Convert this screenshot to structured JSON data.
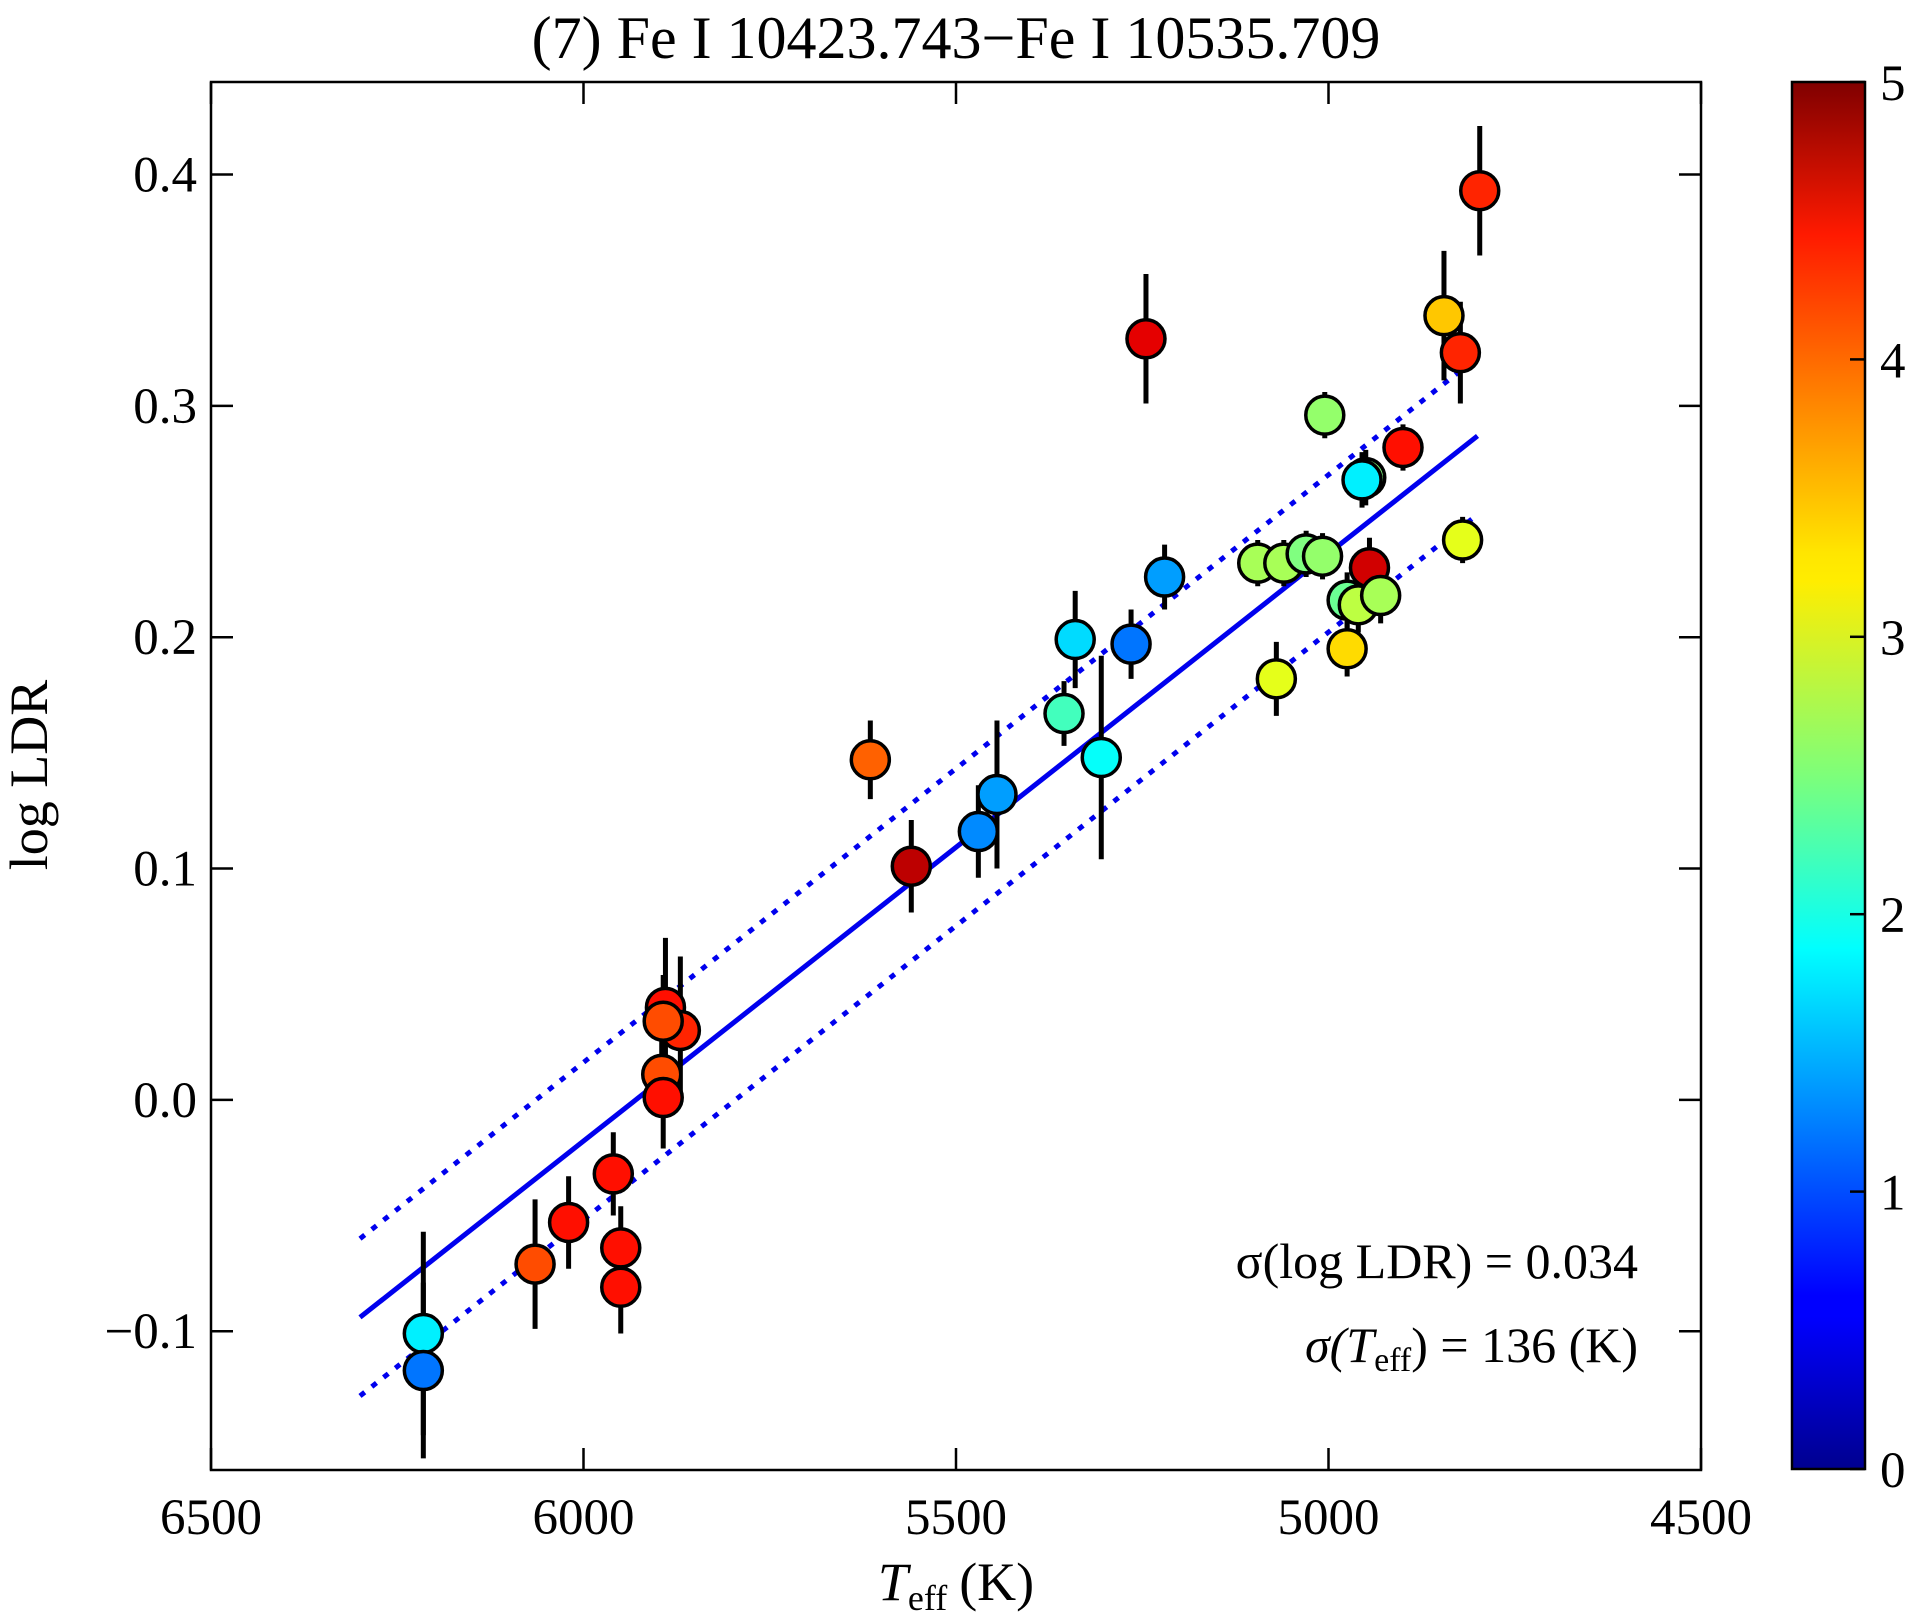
{
  "chart_data": {
    "type": "scatter",
    "title": "(7) Fe I 10423.743−Fe I 10535.709",
    "xlabel": "T_eff (K)",
    "xlabel_main": "T",
    "xlabel_sub": "eff",
    "xlabel_unit": "(K)",
    "ylabel": "log LDR",
    "xlim": [
      6500,
      4500
    ],
    "ylim": [
      -0.16,
      0.44
    ],
    "x_ticks": [
      6500,
      6000,
      5500,
      5000,
      4500
    ],
    "x_tick_labels": [
      "6500",
      "6000",
      "5500",
      "5000",
      "4500"
    ],
    "y_ticks": [
      -0.1,
      0.0,
      0.1,
      0.2,
      0.3,
      0.4
    ],
    "y_tick_labels": [
      "−0.1",
      "0.0",
      "0.1",
      "0.2",
      "0.3",
      "0.4"
    ],
    "colorbar": {
      "range": [
        0,
        5
      ],
      "ticks": [
        0,
        1,
        2,
        3,
        4,
        5
      ],
      "tick_labels": [
        "0",
        "1",
        "2",
        "3",
        "4",
        "5"
      ],
      "colormap": "jet"
    },
    "fit_line": {
      "x": [
        6300,
        4800
      ],
      "y": [
        -0.094,
        0.287
      ],
      "color": "#0000ee"
    },
    "bounds": {
      "upper_y": [
        -0.06,
        0.321
      ],
      "lower_y": [
        -0.128,
        0.253
      ]
    },
    "points": [
      {
        "x": 6215,
        "y": -0.101,
        "err": 0.044,
        "c": 1.8
      },
      {
        "x": 6215,
        "y": -0.117,
        "err": 0.038,
        "c": 1.2
      },
      {
        "x": 6065,
        "y": -0.071,
        "err": 0.028,
        "c": 4.0
      },
      {
        "x": 6020,
        "y": -0.053,
        "err": 0.02,
        "c": 4.3
      },
      {
        "x": 5960,
        "y": -0.032,
        "err": 0.018,
        "c": 4.3
      },
      {
        "x": 5950,
        "y": -0.064,
        "err": 0.018,
        "c": 4.3
      },
      {
        "x": 5950,
        "y": -0.081,
        "err": 0.02,
        "c": 4.3
      },
      {
        "x": 5890,
        "y": 0.04,
        "err": 0.03,
        "c": 4.3
      },
      {
        "x": 5870,
        "y": 0.03,
        "err": 0.032,
        "c": 4.2
      },
      {
        "x": 5893,
        "y": 0.034,
        "err": 0.02,
        "c": 4.0
      },
      {
        "x": 5895,
        "y": 0.011,
        "err": 0.018,
        "c": 4.0
      },
      {
        "x": 5893,
        "y": 0.001,
        "err": 0.022,
        "c": 4.3
      },
      {
        "x": 5615,
        "y": 0.147,
        "err": 0.017,
        "c": 3.9
      },
      {
        "x": 5560,
        "y": 0.101,
        "err": 0.02,
        "c": 4.7
      },
      {
        "x": 5470,
        "y": 0.116,
        "err": 0.02,
        "c": 1.3
      },
      {
        "x": 5445,
        "y": 0.132,
        "err": 0.032,
        "c": 1.4
      },
      {
        "x": 5355,
        "y": 0.167,
        "err": 0.014,
        "c": 2.2
      },
      {
        "x": 5340,
        "y": 0.199,
        "err": 0.021,
        "c": 1.7
      },
      {
        "x": 5305,
        "y": 0.148,
        "err": 0.044,
        "c": 1.9
      },
      {
        "x": 5265,
        "y": 0.197,
        "err": 0.015,
        "c": 1.2
      },
      {
        "x": 5245,
        "y": 0.329,
        "err": 0.028,
        "c": 4.5
      },
      {
        "x": 5220,
        "y": 0.226,
        "err": 0.014,
        "c": 1.4
      },
      {
        "x": 5095,
        "y": 0.232,
        "err": 0.01,
        "c": 2.7
      },
      {
        "x": 5070,
        "y": 0.182,
        "err": 0.016,
        "c": 3.0
      },
      {
        "x": 5060,
        "y": 0.232,
        "err": 0.01,
        "c": 2.7
      },
      {
        "x": 5030,
        "y": 0.236,
        "err": 0.01,
        "c": 2.5
      },
      {
        "x": 5008,
        "y": 0.235,
        "err": 0.01,
        "c": 2.6
      },
      {
        "x": 5005,
        "y": 0.296,
        "err": 0.01,
        "c": 2.6
      },
      {
        "x": 4975,
        "y": 0.216,
        "err": 0.012,
        "c": 2.4
      },
      {
        "x": 4975,
        "y": 0.195,
        "err": 0.012,
        "c": 3.3
      },
      {
        "x": 4960,
        "y": 0.214,
        "err": 0.012,
        "c": 2.8
      },
      {
        "x": 4950,
        "y": 0.269,
        "err": 0.012,
        "c": 2.5
      },
      {
        "x": 4955,
        "y": 0.268,
        "err": 0.012,
        "c": 1.8
      },
      {
        "x": 4945,
        "y": 0.23,
        "err": 0.013,
        "c": 4.6
      },
      {
        "x": 4930,
        "y": 0.218,
        "err": 0.012,
        "c": 2.7
      },
      {
        "x": 4900,
        "y": 0.282,
        "err": 0.01,
        "c": 4.3
      },
      {
        "x": 4845,
        "y": 0.339,
        "err": 0.028,
        "c": 3.4
      },
      {
        "x": 4823,
        "y": 0.323,
        "err": 0.022,
        "c": 4.2
      },
      {
        "x": 4820,
        "y": 0.242,
        "err": 0.01,
        "c": 3.0
      },
      {
        "x": 4797,
        "y": 0.393,
        "err": 0.028,
        "c": 4.2
      }
    ],
    "annotations": [
      {
        "text": "σ(log LDR) = 0.034"
      },
      {
        "sigma": "σ",
        "main": "(T",
        "sub": "eff",
        "rest": ") = 136 (K)"
      }
    ]
  }
}
